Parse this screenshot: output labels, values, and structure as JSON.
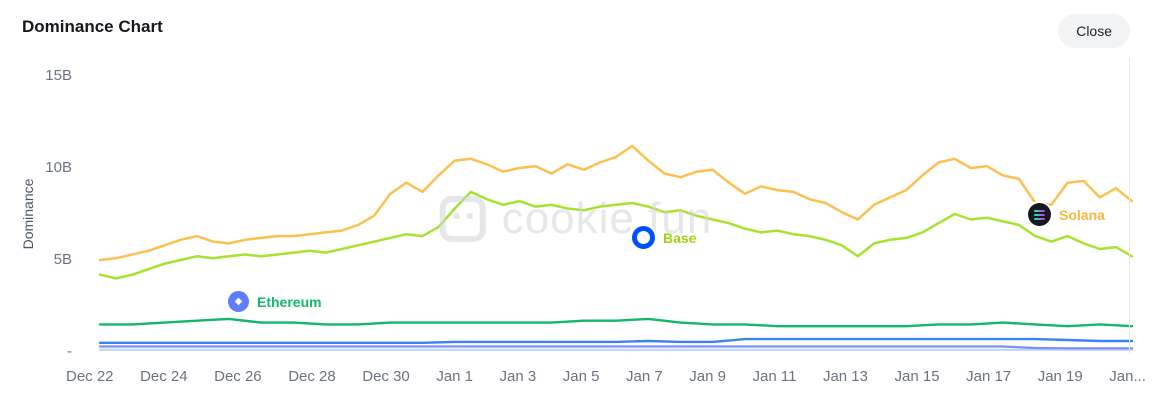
{
  "header": {
    "title": "Dominance Chart",
    "close_label": "Close"
  },
  "watermark": {
    "text": "cookie.fun"
  },
  "chart_data": {
    "type": "line",
    "title": "Dominance Chart",
    "ylabel": "Dominance",
    "ylim_billions": [
      0,
      15
    ],
    "grid": false,
    "legend_position": "on-chart-badges",
    "yticks": [
      {
        "label": "15B",
        "value": 15
      },
      {
        "label": "10B",
        "value": 10
      },
      {
        "label": "5B",
        "value": 5
      },
      {
        "label": "-",
        "value": 0
      }
    ],
    "xticks": [
      "Dec 22",
      "Dec 24",
      "Dec 26",
      "Dec 28",
      "Dec 30",
      "Jan 1",
      "Jan 3",
      "Jan 5",
      "Jan 7",
      "Jan 9",
      "Jan 11",
      "Jan 13",
      "Jan 15",
      "Jan 17",
      "Jan 19",
      "Jan..."
    ],
    "x_range": [
      "Dec 22",
      "Jan 21"
    ],
    "unit": "B (dominance)",
    "series": [
      {
        "name": "unlabeled-lightblue",
        "color": "#bcd7fb",
        "width": 2.2,
        "values": [
          0.12,
          0.12,
          0.12,
          0.12,
          0.12,
          0.12,
          0.12,
          0.12,
          0.12,
          0.12,
          0.12,
          0.12,
          0.12,
          0.12,
          0.12,
          0.12,
          0.12,
          0.12,
          0.12,
          0.12,
          0.12,
          0.12,
          0.12,
          0.12,
          0.12,
          0.12,
          0.12,
          0.12,
          0.12,
          0.12,
          0.12,
          0.12,
          0.12
        ]
      },
      {
        "name": "unlabeled-periwinkle",
        "color": "#818cf8",
        "width": 2.2,
        "values": [
          0.3,
          0.3,
          0.3,
          0.3,
          0.3,
          0.3,
          0.3,
          0.3,
          0.3,
          0.3,
          0.3,
          0.3,
          0.3,
          0.3,
          0.3,
          0.3,
          0.3,
          0.3,
          0.3,
          0.3,
          0.3,
          0.3,
          0.3,
          0.3,
          0.3,
          0.3,
          0.3,
          0.3,
          0.3,
          0.22,
          0.2,
          0.2,
          0.2
        ]
      },
      {
        "name": "unlabeled-blue",
        "color": "#3b82f6",
        "width": 2.4,
        "values": [
          0.5,
          0.5,
          0.5,
          0.5,
          0.5,
          0.5,
          0.5,
          0.5,
          0.5,
          0.5,
          0.5,
          0.55,
          0.55,
          0.55,
          0.55,
          0.55,
          0.55,
          0.6,
          0.55,
          0.55,
          0.7,
          0.7,
          0.7,
          0.7,
          0.7,
          0.7,
          0.7,
          0.7,
          0.7,
          0.7,
          0.65,
          0.6,
          0.6
        ]
      },
      {
        "name": "Ethereum",
        "color": "#12b76a",
        "width": 2.4,
        "values": [
          1.5,
          1.5,
          1.6,
          1.7,
          1.8,
          1.6,
          1.6,
          1.5,
          1.5,
          1.6,
          1.6,
          1.6,
          1.6,
          1.6,
          1.6,
          1.7,
          1.7,
          1.8,
          1.6,
          1.5,
          1.5,
          1.4,
          1.4,
          1.4,
          1.4,
          1.4,
          1.5,
          1.5,
          1.6,
          1.5,
          1.4,
          1.5,
          1.4
        ]
      },
      {
        "name": "Base",
        "color": "#a6e22e",
        "width": 2.5,
        "values": [
          4.2,
          4.0,
          4.2,
          4.5,
          4.8,
          5.0,
          5.2,
          5.1,
          5.2,
          5.3,
          5.2,
          5.3,
          5.4,
          5.5,
          5.4,
          5.6,
          5.8,
          6.0,
          6.2,
          6.4,
          6.3,
          6.8,
          7.8,
          8.7,
          8.3,
          8.0,
          8.2,
          7.9,
          8.0,
          7.8,
          7.7,
          7.9,
          8.0,
          8.1,
          7.9,
          7.6,
          7.7,
          7.4,
          7.2,
          7.0,
          6.7,
          6.5,
          6.6,
          6.4,
          6.3,
          6.1,
          5.8,
          5.2,
          5.9,
          6.1,
          6.2,
          6.5,
          7.0,
          7.5,
          7.2,
          7.3,
          7.1,
          6.9,
          6.3,
          6.0,
          6.3,
          5.9,
          5.6,
          5.7,
          5.2
        ]
      },
      {
        "name": "Solana",
        "color": "#fdc04e",
        "width": 2.5,
        "values": [
          5.0,
          5.1,
          5.3,
          5.5,
          5.8,
          6.1,
          6.3,
          6.0,
          5.9,
          6.1,
          6.2,
          6.3,
          6.3,
          6.4,
          6.5,
          6.6,
          6.9,
          7.4,
          8.6,
          9.2,
          8.7,
          9.6,
          10.4,
          10.5,
          10.2,
          9.8,
          10.0,
          10.1,
          9.7,
          10.2,
          9.9,
          10.3,
          10.6,
          11.2,
          10.4,
          9.7,
          9.5,
          9.8,
          9.9,
          9.2,
          8.6,
          9.0,
          8.8,
          8.7,
          8.3,
          8.1,
          7.6,
          7.2,
          8.0,
          8.4,
          8.8,
          9.6,
          10.3,
          10.5,
          10.0,
          10.1,
          9.6,
          9.4,
          8.1,
          8.0,
          9.2,
          9.3,
          8.4,
          8.9,
          8.2
        ]
      }
    ],
    "annotations": [
      {
        "label": "Ethereum",
        "color": "#12b76a",
        "icon": "ethereum"
      },
      {
        "label": "Base",
        "color": "#9ed313",
        "icon": "base"
      },
      {
        "label": "Solana",
        "color": "#f5b73e",
        "icon": "solana"
      }
    ]
  }
}
